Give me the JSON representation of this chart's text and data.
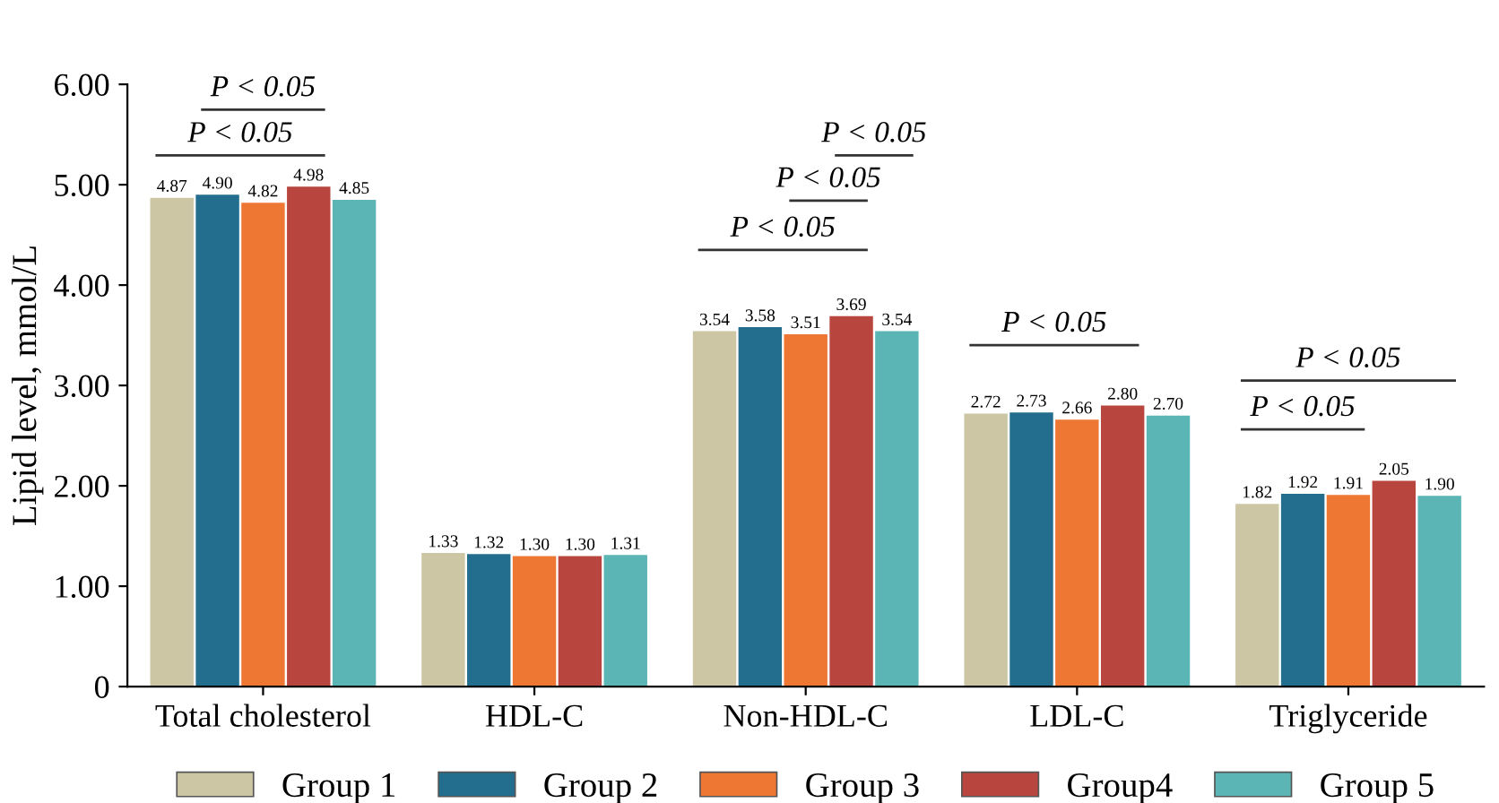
{
  "chart_data": {
    "type": "bar",
    "ylabel": "Lipid level, mmol/L",
    "categories": [
      "Total cholesterol",
      "HDL-C",
      "Non-HDL-C",
      "LDL-C",
      "Triglyceride"
    ],
    "series": [
      {
        "name": "Group 1",
        "color": "#cdc6a5",
        "values": [
          4.87,
          1.33,
          3.54,
          2.72,
          1.82
        ],
        "value_labels": [
          "4.87",
          "1.33",
          "3.54",
          "2.72",
          "1.82"
        ]
      },
      {
        "name": "Group 2",
        "color": "#236e8e",
        "values": [
          4.9,
          1.32,
          3.58,
          2.73,
          1.92
        ],
        "value_labels": [
          "4.90",
          "1.32",
          "3.58",
          "2.73",
          "1.92"
        ]
      },
      {
        "name": "Group 3",
        "color": "#ee7733",
        "values": [
          4.82,
          1.3,
          3.51,
          2.66,
          1.91
        ],
        "value_labels": [
          "4.82",
          "1.30",
          "3.51",
          "2.66",
          "1.91"
        ]
      },
      {
        "name": "Group4",
        "color": "#b8463f",
        "values": [
          4.98,
          1.3,
          3.69,
          2.8,
          2.05
        ],
        "value_labels": [
          "4.98",
          "1.30",
          "3.69",
          "2.80",
          "2.05"
        ]
      },
      {
        "name": "Group 5",
        "color": "#5bb5b5",
        "values": [
          4.85,
          1.31,
          3.54,
          2.7,
          1.9
        ],
        "value_labels": [
          "4.85",
          "1.31",
          "3.54",
          "2.70",
          "1.90"
        ]
      }
    ],
    "ylim": [
      0,
      6
    ],
    "yticks": [
      0,
      {
        "value": 1,
        "label": "1.00"
      },
      {
        "value": 2,
        "label": "2.00"
      },
      {
        "value": 3,
        "label": "3.00"
      },
      {
        "value": 4,
        "label": "4.00"
      },
      {
        "value": 5,
        "label": "5.00"
      },
      {
        "value": 6,
        "label": "6.00"
      }
    ],
    "grid": false,
    "legend": "bottom",
    "annotations": [
      "P < 0.05",
      "P < 0.05",
      "P < 0.05",
      "P < 0.05",
      "P < 0.05",
      "P < 0.05",
      "P < 0.05",
      "P < 0.05"
    ]
  }
}
